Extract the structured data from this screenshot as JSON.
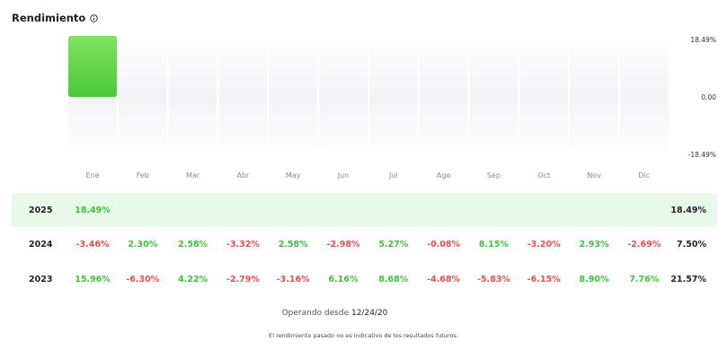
{
  "header": {
    "title": "Rendimiento",
    "info_icon": "info-circle-icon"
  },
  "chart_data": {
    "type": "bar",
    "categories": [
      "Ene",
      "Feb",
      "Mar",
      "Abr",
      "May",
      "Jun",
      "Jul",
      "Ago",
      "Sep",
      "Oct",
      "Nov",
      "Dic"
    ],
    "series": [
      {
        "values": [
          18.49,
          null,
          null,
          null,
          null,
          null,
          null,
          null,
          null,
          null,
          null,
          null
        ]
      }
    ],
    "ylim": [
      -18.49,
      18.49
    ],
    "yticks": [
      "18.49%",
      "0.00",
      "-18.49%"
    ],
    "bar_color": "#5fd94a"
  },
  "table": {
    "rows": [
      {
        "year": "2025",
        "values": [
          "18.49%",
          "",
          "",
          "",
          "",
          "",
          "",
          "",
          "",
          "",
          "",
          ""
        ],
        "total": "18.49%",
        "highlight": true
      },
      {
        "year": "2024",
        "values": [
          "-3.46%",
          "2.30%",
          "2.58%",
          "-3.32%",
          "2.58%",
          "-2.98%",
          "5.27%",
          "-0.08%",
          "8.15%",
          "-3.20%",
          "2.93%",
          "-2.69%"
        ],
        "total": "7.50%",
        "highlight": false
      },
      {
        "year": "2023",
        "values": [
          "15.96%",
          "-6.30%",
          "4.22%",
          "-2.79%",
          "-3.16%",
          "6.16%",
          "8.68%",
          "-4.68%",
          "-5.83%",
          "-6.15%",
          "8.90%",
          "7.76%"
        ],
        "total": "21.57%",
        "highlight": false
      }
    ]
  },
  "footer": {
    "since_label": "Operando desde",
    "since_date": "12/24/20",
    "disclaimer": "El rendimiento pasado no es indicativo de los resultados futuros."
  },
  "colors": {
    "positive": "#3ec23e",
    "negative": "#ef4d4d",
    "highlight_row": "#e9f9e9"
  }
}
